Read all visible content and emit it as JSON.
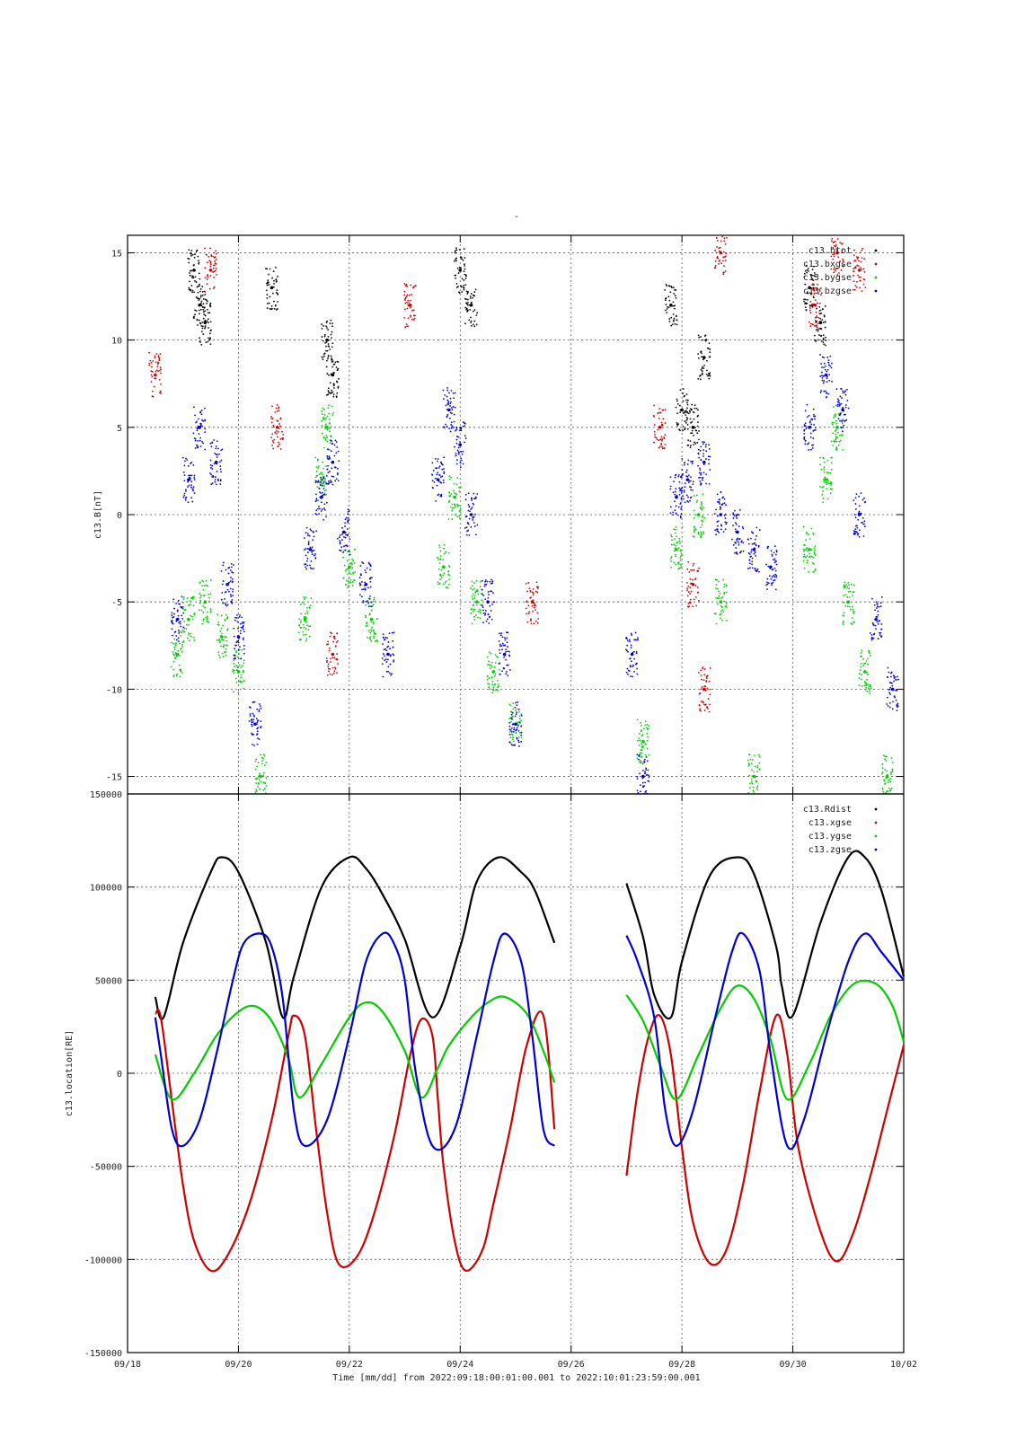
{
  "figure": {
    "title": "-",
    "xlabel": "Time [mm/dd]  from 2022:09:18:00:01:00.001  to  2022:10:01:23:59:00.001",
    "x_tick_labels": [
      "09/18",
      "09/20",
      "09/22",
      "09/24",
      "09/26",
      "09/28",
      "09/30",
      "10/02"
    ],
    "x_range_days": [
      0,
      14
    ]
  },
  "chart_data": [
    {
      "type": "scatter",
      "title": "",
      "xlabel": "",
      "ylabel": "c13.B[nT]",
      "ylim": [
        -16,
        16
      ],
      "yticks": [
        -15,
        -10,
        -5,
        0,
        5,
        10,
        15
      ],
      "ytick_labels": [
        "-15",
        "-10",
        "-5",
        "0",
        "5",
        "10",
        "15"
      ],
      "grid": true,
      "legend_position": "top-right",
      "data_gap_days": [
        7.7,
        9.0
      ],
      "series": [
        {
          "name": "c13.btot",
          "color": "#000000",
          "x": [
            1.2,
            1.3,
            1.4,
            2.6,
            3.6,
            3.7,
            6.0,
            6.2,
            9.8,
            10.0,
            10.2,
            10.4,
            12.3,
            12.5
          ],
          "y": [
            14.0,
            12.0,
            11.0,
            13.0,
            10.0,
            8.0,
            14.0,
            12.0,
            12.0,
            6.0,
            5.0,
            9.0,
            13.0,
            11.0
          ]
        },
        {
          "name": "c13.bxgse",
          "color": "#cc0000",
          "x": [
            0.5,
            1.5,
            2.7,
            3.7,
            5.1,
            7.3,
            9.6,
            10.2,
            10.4,
            10.7,
            12.4,
            12.8,
            13.2
          ],
          "y": [
            8.0,
            14.0,
            5.0,
            -8.0,
            12.0,
            -5.0,
            5.0,
            -4.0,
            -10.0,
            15.0,
            12.0,
            15.0,
            14.0
          ]
        },
        {
          "name": "c13.bygse",
          "color": "#00cc00",
          "x": [
            0.9,
            1.1,
            1.4,
            1.7,
            2.0,
            2.4,
            3.2,
            3.5,
            3.6,
            4.0,
            4.4,
            5.7,
            5.9,
            6.3,
            6.6,
            7.0,
            9.3,
            9.9,
            10.3,
            10.7,
            11.3,
            12.3,
            12.6,
            12.8,
            13.0,
            13.3,
            13.7
          ],
          "y": [
            -8.0,
            -6.0,
            -5.0,
            -7.0,
            -9.0,
            -15.0,
            -6.0,
            2.0,
            5.0,
            -3.0,
            -6.0,
            -3.0,
            1.0,
            -5.0,
            -9.0,
            -12.0,
            -13.0,
            -2.0,
            0.0,
            -5.0,
            -15.0,
            -2.0,
            2.0,
            5.0,
            -5.0,
            -9.0,
            -15.0
          ]
        },
        {
          "name": "c13.bzgse",
          "color": "#0000cc",
          "x": [
            0.9,
            1.1,
            1.3,
            1.6,
            1.8,
            2.0,
            2.3,
            3.3,
            3.5,
            3.7,
            3.9,
            4.3,
            4.7,
            5.6,
            5.8,
            6.0,
            6.2,
            6.5,
            6.8,
            7.0,
            9.1,
            9.3,
            9.9,
            10.1,
            10.4,
            10.7,
            11.0,
            11.3,
            11.6,
            12.3,
            12.6,
            12.9,
            13.2,
            13.5,
            13.8
          ],
          "y": [
            -6.0,
            2.0,
            5.0,
            3.0,
            -4.0,
            -7.0,
            -12.0,
            -2.0,
            1.0,
            3.0,
            -1.0,
            -4.0,
            -8.0,
            2.0,
            6.0,
            4.0,
            0.0,
            -5.0,
            -8.0,
            -12.0,
            -8.0,
            -15.0,
            1.0,
            2.0,
            3.0,
            0.0,
            -1.0,
            -2.0,
            -3.0,
            5.0,
            8.0,
            6.0,
            0.0,
            -6.0,
            -10.0
          ]
        }
      ]
    },
    {
      "type": "line",
      "title": "",
      "xlabel": "",
      "ylabel": "c13.location[RE]",
      "ylim": [
        -150000,
        150000
      ],
      "yticks": [
        -150000,
        -100000,
        -50000,
        0,
        50000,
        100000,
        150000
      ],
      "ytick_labels": [
        "-150000",
        "-100000",
        "-50000",
        "0",
        "50000",
        "100000",
        "150000"
      ],
      "grid": true,
      "legend_position": "top-right",
      "data_gap_days": [
        7.7,
        9.0
      ],
      "series": [
        {
          "name": "c13.Rdist",
          "color": "#000000",
          "x": [
            0.5,
            0.65,
            1.0,
            1.5,
            1.7,
            2.0,
            2.5,
            2.8,
            3.0,
            3.5,
            4.0,
            4.3,
            4.6,
            5.0,
            5.5,
            6.0,
            6.3,
            6.7,
            7.1,
            7.35,
            7.7,
            9.0,
            9.3,
            9.5,
            9.8,
            10.0,
            10.5,
            11.0,
            11.3,
            11.7,
            11.8,
            12.0,
            12.5,
            13.0,
            13.3,
            13.6,
            14.0
          ],
          "y": [
            41000,
            30000,
            70000,
            108000,
            116000,
            108000,
            70000,
            30000,
            52000,
            100000,
            116000,
            110000,
            96000,
            72000,
            30000,
            68000,
            103000,
            116000,
            108000,
            98000,
            70000,
            102000,
            73000,
            42000,
            30000,
            60000,
            106000,
            116000,
            107000,
            68000,
            47000,
            31000,
            81000,
            116000,
            116000,
            98000,
            52000
          ]
        },
        {
          "name": "c13.xgse",
          "color": "#cc0000",
          "x": [
            0.5,
            0.6,
            0.8,
            1.0,
            1.2,
            1.5,
            1.8,
            2.2,
            2.6,
            2.9,
            3.0,
            3.2,
            3.4,
            3.6,
            3.8,
            4.1,
            4.4,
            4.8,
            5.1,
            5.3,
            5.5,
            5.6,
            5.7,
            5.9,
            6.1,
            6.4,
            6.6,
            6.9,
            7.2,
            7.5,
            7.7,
            9.0,
            9.2,
            9.4,
            9.6,
            9.8,
            10.0,
            10.2,
            10.5,
            10.8,
            11.1,
            11.4,
            11.7,
            11.9,
            12.1,
            12.5,
            12.8,
            13.1,
            13.4,
            13.7,
            14.0
          ],
          "y": [
            32000,
            30000,
            -15000,
            -60000,
            -90000,
            -106000,
            -98000,
            -70000,
            -25000,
            20000,
            31000,
            20000,
            -30000,
            -75000,
            -102000,
            -100000,
            -80000,
            -35000,
            10000,
            29000,
            20000,
            -15000,
            -50000,
            -90000,
            -106000,
            -95000,
            -70000,
            -30000,
            15000,
            31000,
            -30000,
            -55000,
            -10000,
            20000,
            31000,
            10000,
            -40000,
            -80000,
            -102000,
            -95000,
            -60000,
            -10000,
            31000,
            10000,
            -40000,
            -85000,
            -101000,
            -85000,
            -55000,
            -20000,
            15000
          ]
        },
        {
          "name": "c13.ygse",
          "color": "#00cc00",
          "x": [
            0.5,
            0.8,
            1.2,
            1.6,
            2.0,
            2.3,
            2.6,
            2.9,
            3.1,
            3.5,
            4.0,
            4.3,
            4.6,
            5.0,
            5.3,
            5.6,
            5.8,
            6.2,
            6.5,
            6.8,
            7.2,
            7.5,
            7.7,
            9.0,
            9.3,
            9.6,
            9.9,
            10.3,
            10.7,
            11.0,
            11.3,
            11.6,
            11.9,
            12.3,
            12.7,
            13.1,
            13.5,
            13.8,
            14.0
          ],
          "y": [
            10000,
            -14000,
            0,
            20000,
            33000,
            36000,
            28000,
            8000,
            -13000,
            5000,
            30000,
            38000,
            33000,
            12000,
            -13000,
            3000,
            15000,
            30000,
            38000,
            41000,
            32000,
            12000,
            -5000,
            42000,
            28000,
            5000,
            -14000,
            10000,
            35000,
            47000,
            40000,
            18000,
            -14000,
            5000,
            32000,
            48000,
            48000,
            36000,
            17000
          ]
        },
        {
          "name": "c13.zgse",
          "color": "#0000cc",
          "x": [
            0.5,
            0.6,
            0.8,
            1.0,
            1.3,
            1.6,
            1.9,
            2.1,
            2.4,
            2.6,
            2.8,
            3.0,
            3.2,
            3.6,
            4.0,
            4.3,
            4.6,
            4.8,
            5.0,
            5.2,
            5.5,
            5.9,
            6.3,
            6.6,
            6.8,
            7.1,
            7.3,
            7.5,
            7.7,
            9.0,
            9.2,
            9.5,
            9.7,
            9.9,
            10.2,
            10.6,
            10.9,
            11.1,
            11.4,
            11.6,
            11.9,
            12.2,
            12.6,
            13.0,
            13.3,
            13.6,
            14.0
          ],
          "y": [
            30000,
            10000,
            -30000,
            -39000,
            -25000,
            10000,
            50000,
            70000,
            75000,
            68000,
            40000,
            -20000,
            -39000,
            -25000,
            20000,
            60000,
            75000,
            70000,
            50000,
            0,
            -39000,
            -30000,
            20000,
            60000,
            75000,
            60000,
            20000,
            -30000,
            -39000,
            74000,
            60000,
            30000,
            -20000,
            -39000,
            -20000,
            30000,
            65000,
            75000,
            55000,
            10000,
            -39000,
            -25000,
            20000,
            60000,
            75000,
            65000,
            50000
          ]
        }
      ]
    }
  ]
}
